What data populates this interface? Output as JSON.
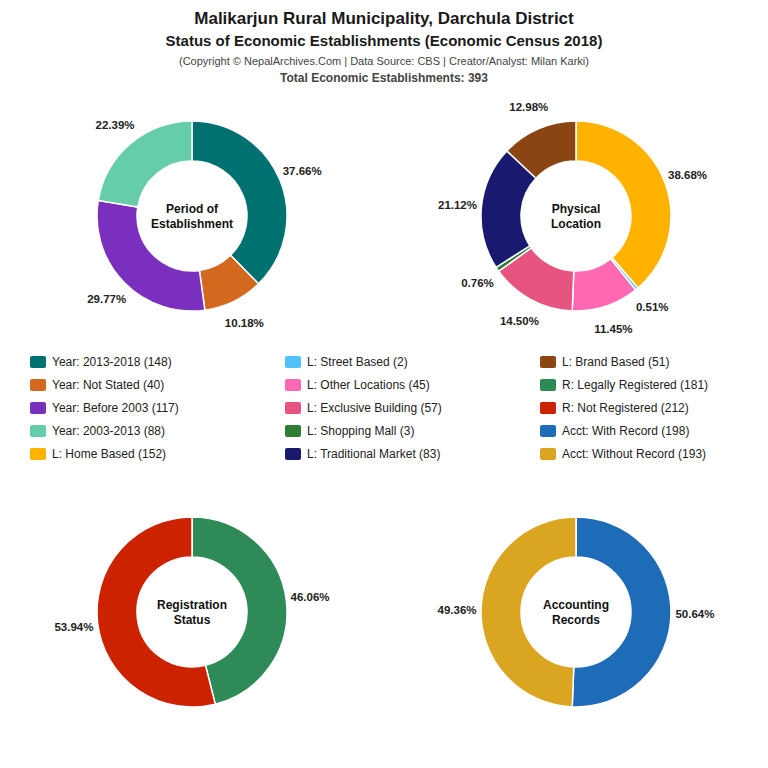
{
  "title": [
    "Malikarjun Rural Municipality, Darchula District",
    "Status of Economic Establishments (Economic Census 2018)"
  ],
  "subtitle": [
    "(Copyright © NepalArchives.Com | Data Source: CBS | Creator/Analyst: Milan Karki)",
    "Total Economic Establishments: 393"
  ],
  "chart_data": [
    {
      "type": "pie",
      "title": "Period of\nEstablishment",
      "categories": [
        "Year: 2013-2018 (148)",
        "Year: Not Stated (40)",
        "Year: Before 2003 (117)",
        "Year: 2003-2013 (88)"
      ],
      "values": [
        37.66,
        10.18,
        29.77,
        22.39
      ],
      "value_labels": [
        "37.66%",
        "10.18%",
        "29.77%",
        "22.39%"
      ],
      "colors": [
        "#007070",
        "#D2691E",
        "#7B2FBE",
        "#66CDAA"
      ],
      "data_labels": true
    },
    {
      "type": "pie",
      "title": "Physical\nLocation",
      "categories": [
        "L: Home Based (152)",
        "L: Street Based (2)",
        "L: Other Locations (45)",
        "L: Exclusive Building (57)",
        "L: Shopping Mall (3)",
        "L: Traditional Market (83)",
        "L: Brand Based (51)"
      ],
      "values": [
        38.68,
        0.51,
        11.45,
        14.5,
        0.76,
        21.12,
        12.98
      ],
      "value_labels": [
        "38.68%",
        "0.51%",
        "11.45%",
        "14.50%",
        "0.76%",
        "21.12%",
        "12.98%"
      ],
      "colors": [
        "#FFB300",
        "#4FC3F7",
        "#FF69B4",
        "#E75480",
        "#2E7D32",
        "#191970",
        "#8B4513"
      ],
      "data_labels": true
    },
    {
      "type": "pie",
      "title": "Registration\nStatus",
      "categories": [
        "R: Legally Registered (181)",
        "R: Not Registered (212)"
      ],
      "values": [
        46.06,
        53.94
      ],
      "value_labels": [
        "46.06%",
        "53.94%"
      ],
      "colors": [
        "#2E8B57",
        "#CC2200"
      ],
      "data_labels": true
    },
    {
      "type": "pie",
      "title": "Accounting\nRecords",
      "categories": [
        "Acct: With Record (198)",
        "Acct: Without Record (193)"
      ],
      "values": [
        50.64,
        49.36
      ],
      "value_labels": [
        "50.64%",
        "49.36%"
      ],
      "colors": [
        "#1E6BB8",
        "#DAA520"
      ],
      "data_labels": true
    }
  ]
}
